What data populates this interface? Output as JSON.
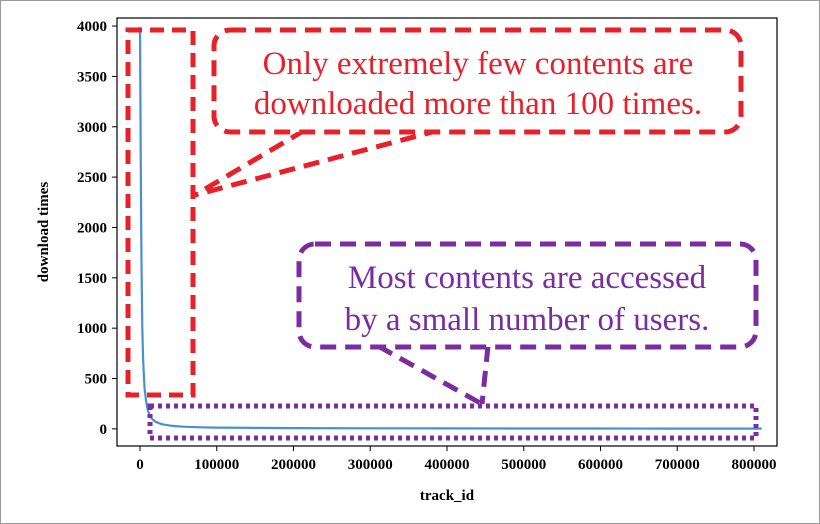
{
  "chart_data": {
    "type": "line",
    "title": "",
    "xlabel": "track_id",
    "ylabel": "download times",
    "xlim": [
      -30000,
      830000
    ],
    "ylim": [
      -170,
      4080
    ],
    "xticks": [
      0,
      100000,
      200000,
      300000,
      400000,
      500000,
      600000,
      700000,
      800000
    ],
    "xtick_labels": [
      "0",
      "100000",
      "200000",
      "300000",
      "400000",
      "500000",
      "600000",
      "700000",
      "800000"
    ],
    "yticks": [
      0,
      500,
      1000,
      1500,
      2000,
      2500,
      3000,
      3500,
      4000
    ],
    "ytick_labels": [
      "0",
      "500",
      "1000",
      "1500",
      "2000",
      "2500",
      "3000",
      "3500",
      "4000"
    ],
    "grid": false,
    "legend": "none",
    "series": [
      {
        "color": "#4a8fd1",
        "x": [
          0,
          500,
          1000,
          1500,
          2000,
          3000,
          4000,
          5000,
          6000,
          8000,
          10000,
          12500,
          15000,
          20000,
          25000,
          30000,
          40000,
          50000,
          60000,
          80000,
          100000,
          150000,
          200000,
          300000,
          400000,
          500000,
          600000,
          700000,
          810000
        ],
        "y": [
          3990,
          3300,
          2600,
          2000,
          1550,
          1000,
          700,
          520,
          400,
          270,
          190,
          135,
          105,
          72,
          55,
          44,
          32,
          25,
          21,
          16,
          13,
          10,
          8,
          6,
          5,
          4,
          4,
          3,
          3
        ]
      }
    ],
    "annotations": {
      "red_callout": {
        "lines": [
          "Only extremely few contents are",
          "downloaded more than 100 times."
        ],
        "color": "#e8202a"
      },
      "purple_callout": {
        "lines": [
          "Most contents are accessed",
          "by a small number of users."
        ],
        "color": "#7a2ca0"
      }
    }
  }
}
